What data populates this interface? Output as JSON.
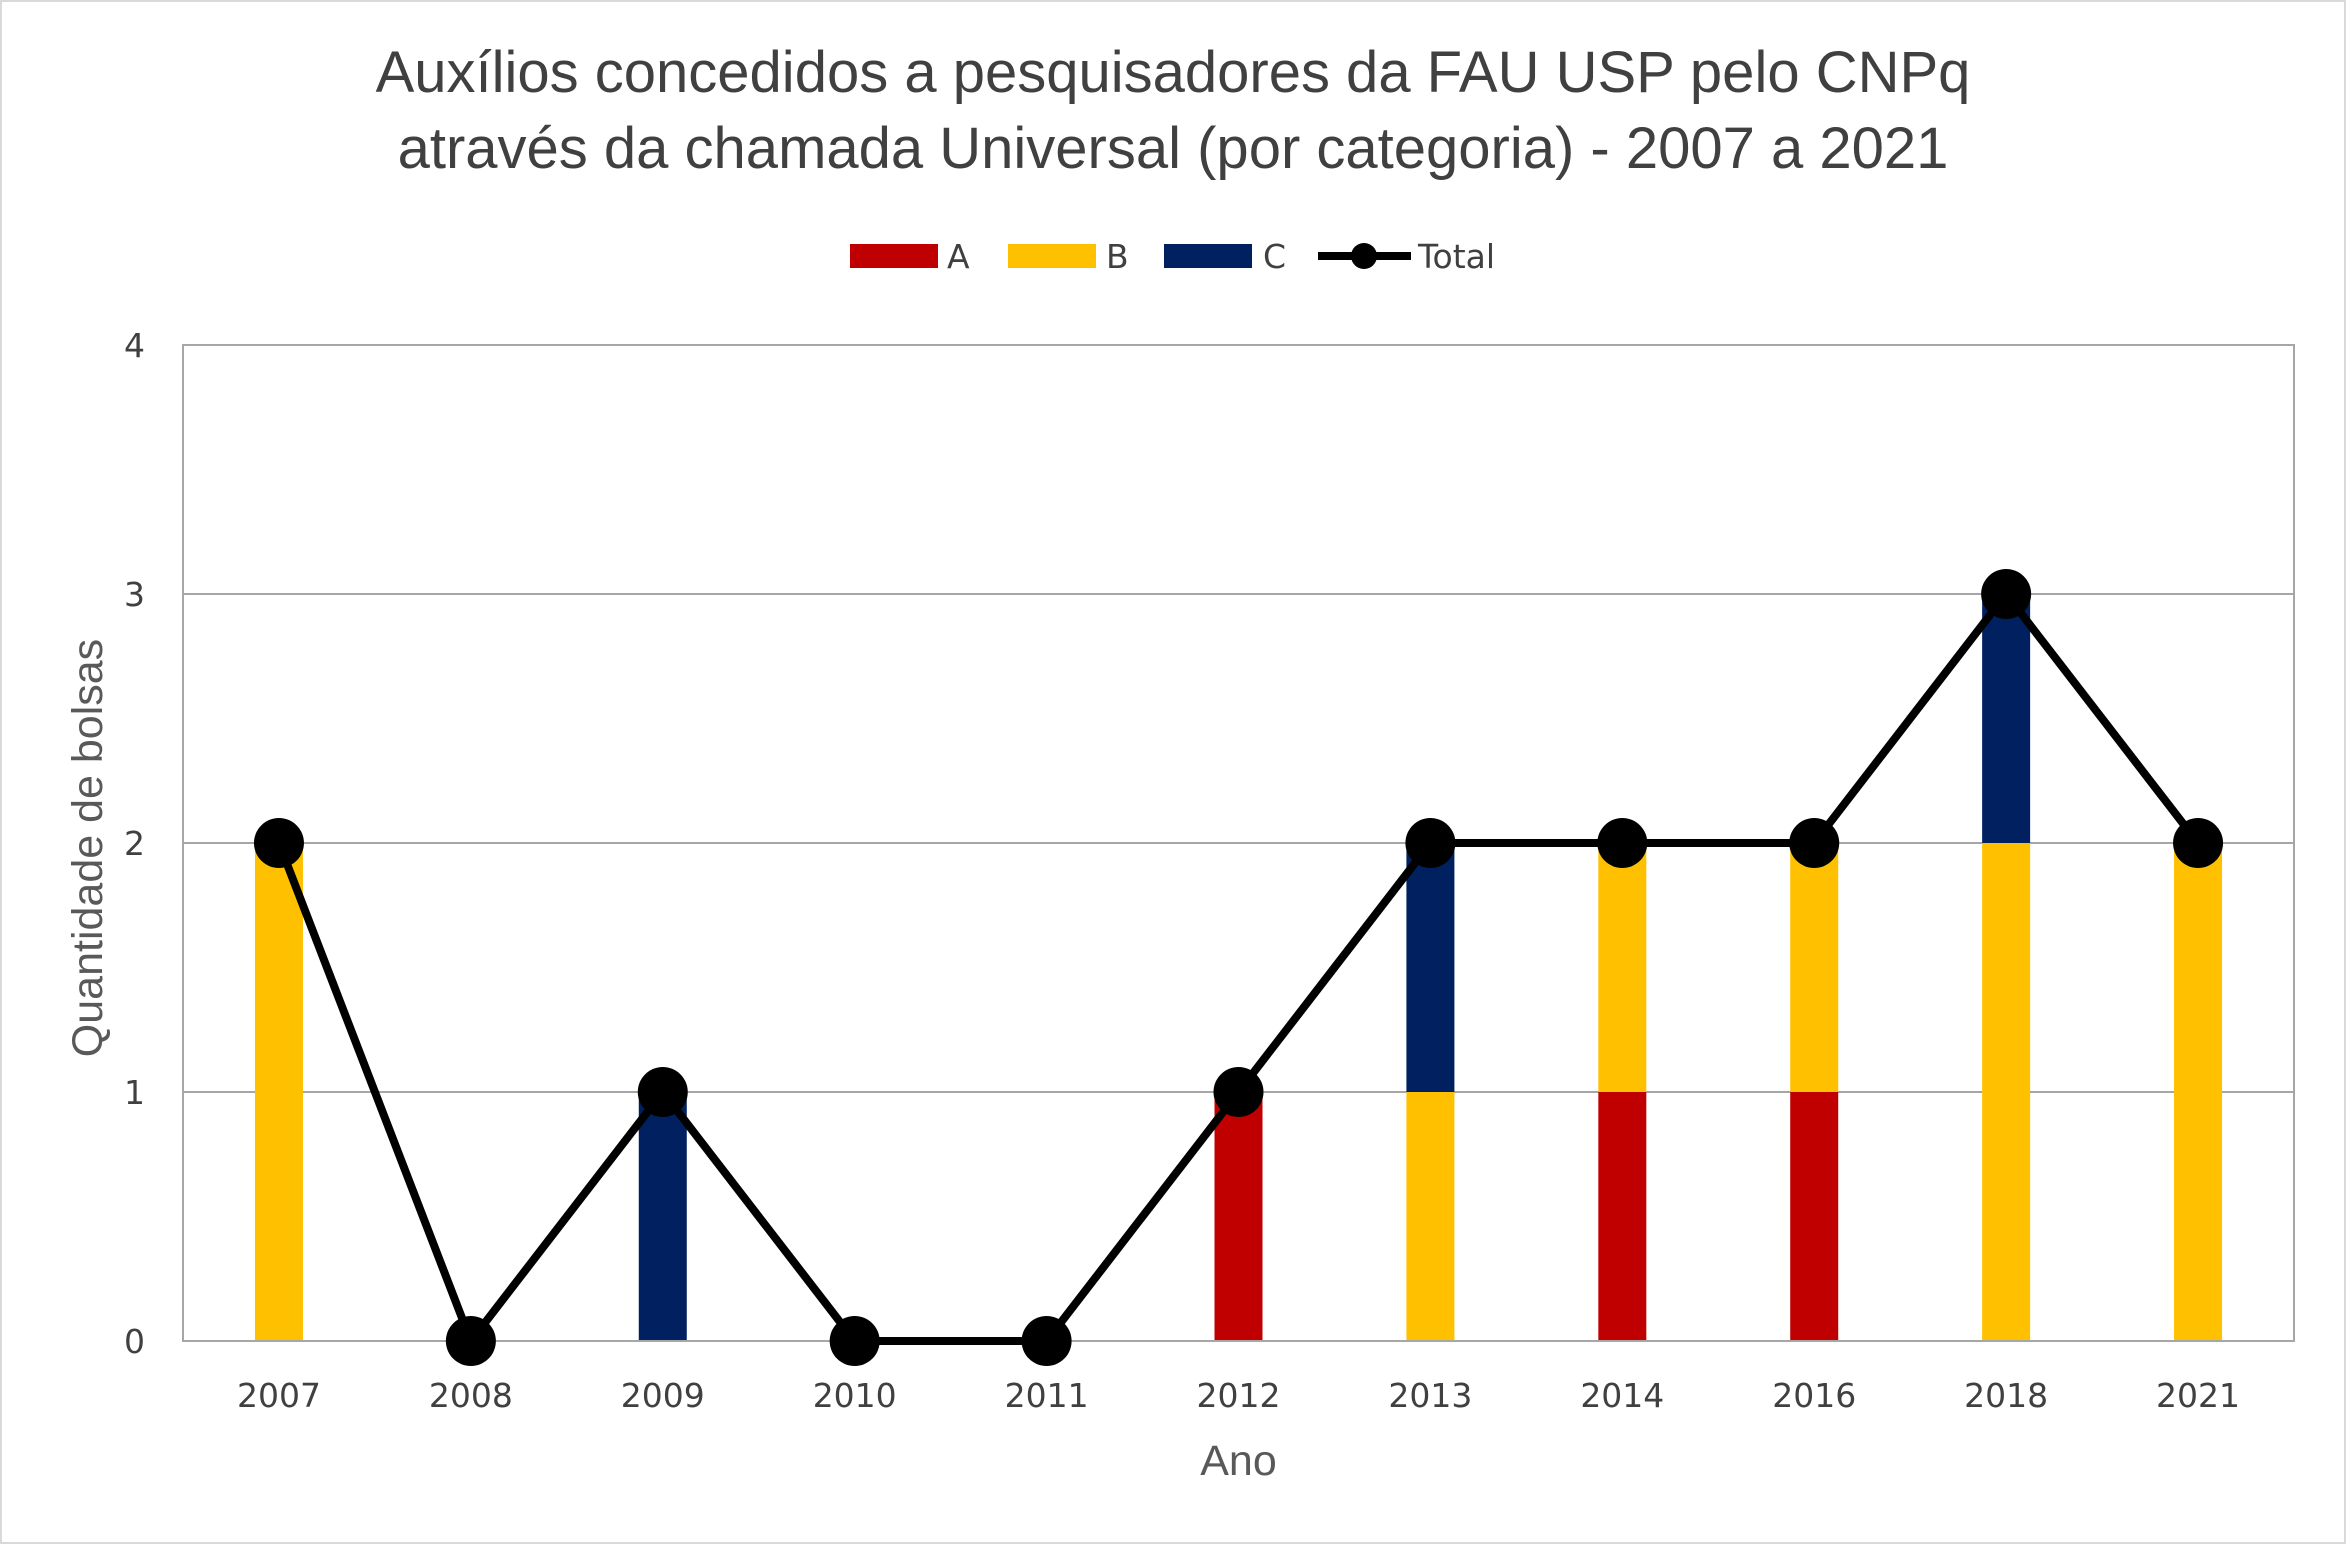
{
  "chart_data": {
    "type": "bar",
    "stacked": true,
    "title_lines": [
      "Auxílios concedidos a pesquisadores da FAU USP pelo CNPq",
      "através da chamada Universal (por categoria) - 2007 a 2021"
    ],
    "xlabel": "Ano",
    "ylabel": "Quantidade de bolsas",
    "categories": [
      "2007",
      "2008",
      "2009",
      "2010",
      "2011",
      "2012",
      "2013",
      "2014",
      "2016",
      "2018",
      "2021"
    ],
    "ylim": [
      0,
      4
    ],
    "yticks": [
      "0",
      "1",
      "2",
      "3",
      "4"
    ],
    "grid": true,
    "legend_position": "top",
    "series": [
      {
        "name": "A",
        "kind": "bar",
        "color": "#C00000",
        "values": [
          0,
          0,
          0,
          0,
          0,
          1,
          0,
          1,
          1,
          0,
          0
        ]
      },
      {
        "name": "B",
        "kind": "bar",
        "color": "#FFC000",
        "values": [
          2,
          0,
          0,
          0,
          0,
          0,
          1,
          1,
          1,
          2,
          2
        ]
      },
      {
        "name": "C",
        "kind": "bar",
        "color": "#002060",
        "values": [
          0,
          0,
          1,
          0,
          0,
          0,
          1,
          0,
          0,
          1,
          0
        ]
      },
      {
        "name": "Total",
        "kind": "line",
        "color": "#000000",
        "values": [
          2,
          0,
          1,
          0,
          0,
          1,
          2,
          2,
          2,
          3,
          2
        ]
      }
    ]
  }
}
